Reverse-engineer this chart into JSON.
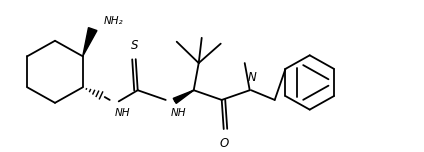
{
  "figsize": [
    4.24,
    1.52
  ],
  "dpi": 100,
  "bg_color": "#ffffff",
  "line_color": "#000000",
  "lw": 1.3,
  "font_size": 7.0,
  "xlim": [
    0,
    42.4
  ],
  "ylim": [
    0,
    15.2
  ]
}
